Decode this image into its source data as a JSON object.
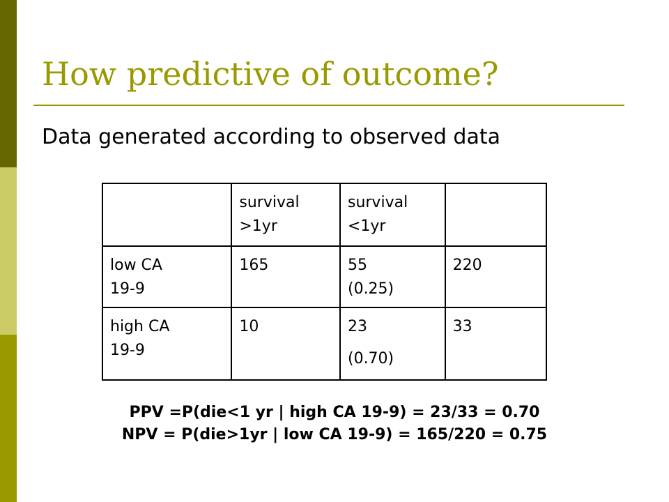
{
  "slide": {
    "title": "How predictive of outcome?",
    "subtitle": "Data generated according to observed data",
    "colors": {
      "accent": "#999900",
      "bar_dark": "#666600",
      "bar_light": "#cccc66",
      "bar_mid": "#999900"
    }
  },
  "table": {
    "header": {
      "col1": [
        "survival",
        ">1yr"
      ],
      "col2": [
        "survival",
        "<1yr"
      ]
    },
    "rows": [
      {
        "label": [
          "low CA",
          "19-9"
        ],
        "gt1yr": "165",
        "lt1yr": [
          "55",
          "(0.25)"
        ],
        "total": "220"
      },
      {
        "label": [
          "high CA",
          "19-9"
        ],
        "gt1yr": "10",
        "lt1yr": [
          "23",
          "(0.70)"
        ],
        "total": "33"
      }
    ]
  },
  "formulas": {
    "ppv": "PPV =P(die<1 yr | high CA 19-9) = 23/33 = 0.70",
    "npv": "NPV = P(die>1yr | low CA 19-9) = 165/220 = 0.75"
  }
}
